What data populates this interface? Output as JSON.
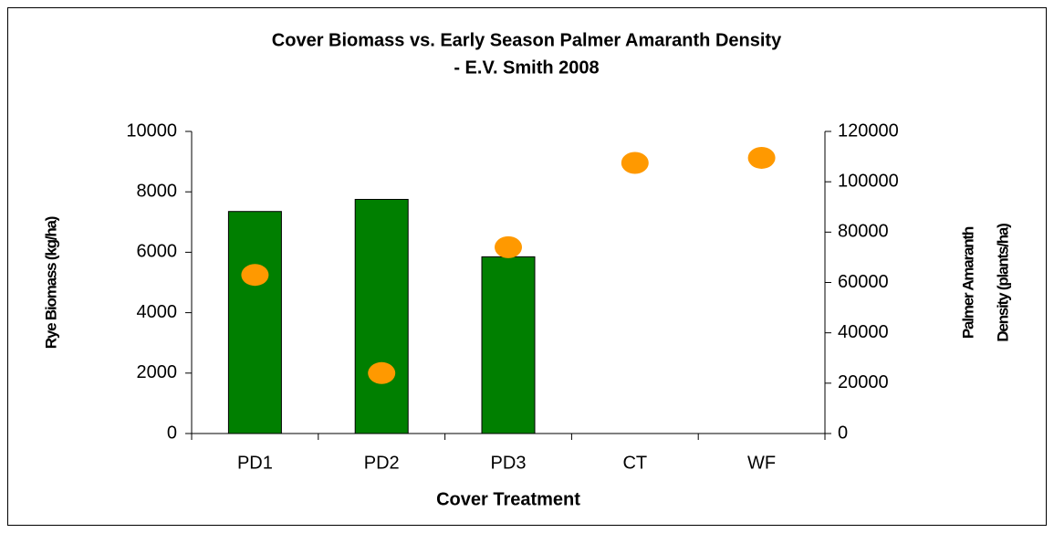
{
  "chart_data": {
    "type": "bar",
    "title": [
      "Cover Biomass vs. Early Season Palmer Amaranth Density",
      "- E.V. Smith 2008"
    ],
    "xlabel": "Cover Treatment",
    "ylabel": "Rye Biomass (kg/ha)",
    "y2label": [
      "Palmer Amaranth",
      "Density (plants/ha)"
    ],
    "categories": [
      "PD1",
      "PD2",
      "PD3",
      "CT",
      "WF"
    ],
    "series": [
      {
        "name": "Rye Biomass",
        "type": "bar",
        "color": "#007f00",
        "values": [
          7350,
          7750,
          5850,
          null,
          null
        ]
      },
      {
        "name": "Palmer Amaranth Density",
        "type": "scatter",
        "axis": "y2",
        "color": "#ff9900",
        "values": [
          63000,
          24000,
          74000,
          107500,
          109500
        ]
      }
    ],
    "ylim": [
      0,
      10000
    ],
    "yticks": [
      0,
      2000,
      4000,
      6000,
      8000,
      10000
    ],
    "y2lim": [
      0,
      120000
    ],
    "y2ticks": [
      0,
      20000,
      40000,
      60000,
      80000,
      100000,
      120000
    ],
    "grid": false
  }
}
